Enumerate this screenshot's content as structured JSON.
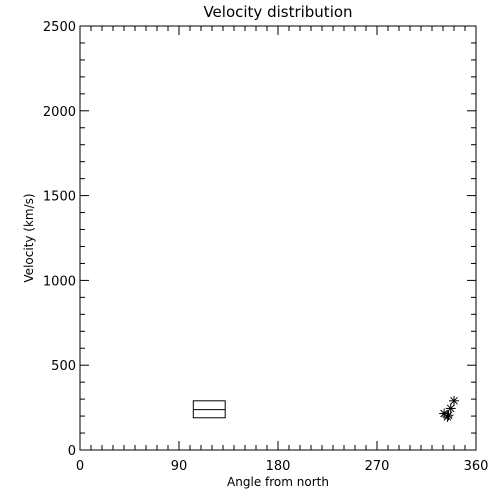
{
  "chart_data": {
    "type": "scatter",
    "title": "Velocity distribution",
    "xlabel": "Angle from north",
    "ylabel": "Velocity (km/s)",
    "xlim": [
      0,
      360
    ],
    "ylim": [
      0,
      2500
    ],
    "xticks": [
      0,
      90,
      180,
      270,
      360
    ],
    "yticks": [
      0,
      500,
      1000,
      1500,
      2000,
      2500
    ],
    "x_minor_step": 10,
    "y_minor_step": 100,
    "grid": false,
    "box": {
      "x_range": [
        103,
        132
      ],
      "y_range": [
        190,
        290
      ],
      "median": 238
    },
    "points": {
      "marker": "asterisk",
      "x": [
        334,
        331,
        335,
        337,
        340
      ],
      "y": [
        195,
        215,
        205,
        245,
        290
      ]
    }
  }
}
